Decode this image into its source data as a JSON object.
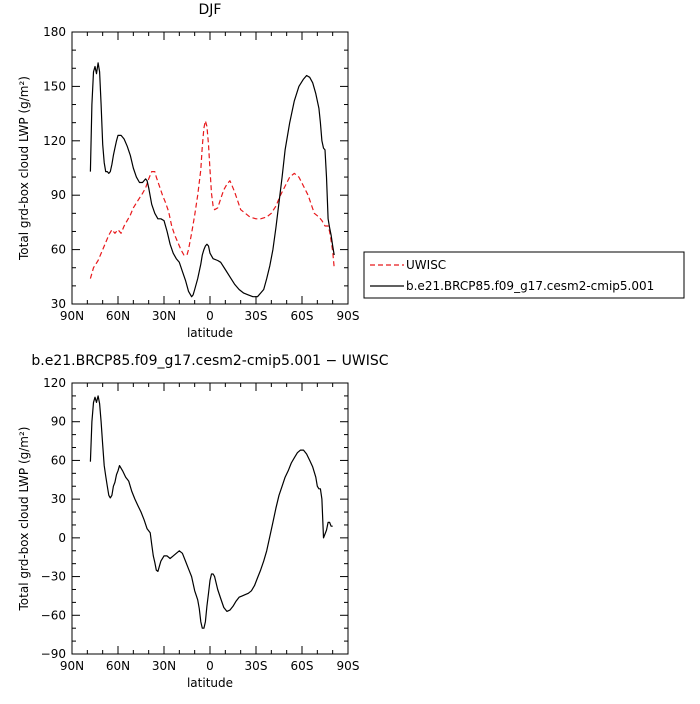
{
  "chart_data": [
    {
      "type": "line",
      "title": "DJF",
      "xlabel": "latitude",
      "ylabel": "Total grd-box cloud LWP (g/m²)",
      "xlim": [
        90,
        -90
      ],
      "ylim": [
        30,
        180
      ],
      "xticks": [
        90,
        60,
        30,
        0,
        -30,
        -60,
        -90
      ],
      "xticklabels": [
        "90N",
        "60N",
        "30N",
        "0",
        "30S",
        "60S",
        "90S"
      ],
      "yticks": [
        30,
        60,
        90,
        120,
        150,
        180
      ],
      "yticklabels": [
        "30",
        "60",
        "90",
        "120",
        "150",
        "180"
      ],
      "legend_position": "right",
      "series": [
        {
          "name": "UWISC",
          "color": "#e8191c",
          "dash": "dashed",
          "points": [
            [
              78,
              44
            ],
            [
              76,
              50
            ],
            [
              73,
              54
            ],
            [
              70,
              60
            ],
            [
              66,
              68
            ],
            [
              64,
              71
            ],
            [
              62,
              69
            ],
            [
              60,
              71
            ],
            [
              58,
              69
            ],
            [
              56,
              73
            ],
            [
              52,
              79
            ],
            [
              50,
              83
            ],
            [
              47,
              87
            ],
            [
              44,
              91
            ],
            [
              42,
              94
            ],
            [
              40,
              99
            ],
            [
              38,
              103
            ],
            [
              36,
              103
            ],
            [
              35,
              100
            ],
            [
              33,
              95
            ],
            [
              31,
              90
            ],
            [
              29,
              86
            ],
            [
              27,
              81
            ],
            [
              25,
              73
            ],
            [
              23,
              68
            ],
            [
              21,
              64
            ],
            [
              19,
              60
            ],
            [
              17,
              57
            ],
            [
              15,
              57
            ],
            [
              14,
              60
            ],
            [
              12,
              69
            ],
            [
              10,
              79
            ],
            [
              8,
              90
            ],
            [
              6,
              104
            ],
            [
              5,
              117
            ],
            [
              4,
              127
            ],
            [
              3,
              131
            ],
            [
              2,
              128
            ],
            [
              1,
              118
            ],
            [
              0,
              104
            ],
            [
              -1,
              91
            ],
            [
              -2,
              84
            ],
            [
              -3,
              82
            ],
            [
              -5,
              83
            ],
            [
              -7,
              88
            ],
            [
              -9,
              93
            ],
            [
              -11,
              96
            ],
            [
              -13,
              98
            ],
            [
              -14,
              96
            ],
            [
              -16,
              92
            ],
            [
              -18,
              87
            ],
            [
              -20,
              82
            ],
            [
              -23,
              80
            ],
            [
              -26,
              78
            ],
            [
              -30,
              77
            ],
            [
              -33,
              77
            ],
            [
              -37,
              78
            ],
            [
              -40,
              80
            ],
            [
              -43,
              84
            ],
            [
              -46,
              90
            ],
            [
              -49,
              95
            ],
            [
              -52,
              100
            ],
            [
              -55,
              102
            ],
            [
              -58,
              100
            ],
            [
              -61,
              95
            ],
            [
              -64,
              90
            ],
            [
              -66,
              85
            ],
            [
              -68,
              80
            ],
            [
              -71,
              78
            ],
            [
              -73,
              76
            ],
            [
              -75,
              73
            ],
            [
              -77,
              73
            ],
            [
              -78,
              70
            ],
            [
              -79,
              65
            ],
            [
              -80,
              59
            ],
            [
              -81,
              50
            ]
          ]
        },
        {
          "name": "b.e21.BRCP85.f09_g17.cesm2-cmip5.001",
          "color": "#000000",
          "dash": "solid",
          "points": [
            [
              78,
              103
            ],
            [
              77,
              140
            ],
            [
              76,
              158
            ],
            [
              75,
              161
            ],
            [
              74,
              157
            ],
            [
              73,
              163
            ],
            [
              72,
              158
            ],
            [
              71,
              140
            ],
            [
              70,
              118
            ],
            [
              69,
              108
            ],
            [
              68,
              103
            ],
            [
              67,
              103
            ],
            [
              66,
              102
            ],
            [
              65,
              103
            ],
            [
              64,
              107
            ],
            [
              63,
              112
            ],
            [
              62,
              116
            ],
            [
              61,
              120
            ],
            [
              60,
              123
            ],
            [
              58,
              123
            ],
            [
              56,
              121
            ],
            [
              54,
              117
            ],
            [
              52,
              112
            ],
            [
              50,
              105
            ],
            [
              48,
              100
            ],
            [
              46,
              97
            ],
            [
              44,
              97
            ],
            [
              42,
              99
            ],
            [
              41,
              98
            ],
            [
              40,
              94
            ],
            [
              38,
              85
            ],
            [
              36,
              80
            ],
            [
              34,
              77
            ],
            [
              32,
              77
            ],
            [
              30,
              76
            ],
            [
              28,
              70
            ],
            [
              26,
              63
            ],
            [
              24,
              58
            ],
            [
              22,
              55
            ],
            [
              20,
              53
            ],
            [
              18,
              48
            ],
            [
              16,
              43
            ],
            [
              14,
              37
            ],
            [
              12,
              34
            ],
            [
              11,
              35
            ],
            [
              10,
              38
            ],
            [
              8,
              44
            ],
            [
              6,
              52
            ],
            [
              5,
              57
            ],
            [
              4,
              60
            ],
            [
              3,
              62
            ],
            [
              2,
              63
            ],
            [
              1,
              62
            ],
            [
              0,
              58
            ],
            [
              -2,
              55
            ],
            [
              -5,
              54
            ],
            [
              -7,
              53
            ],
            [
              -10,
              49
            ],
            [
              -13,
              45
            ],
            [
              -16,
              41
            ],
            [
              -19,
              38
            ],
            [
              -22,
              36
            ],
            [
              -25,
              35
            ],
            [
              -28,
              34
            ],
            [
              -31,
              34
            ],
            [
              -33,
              36
            ],
            [
              -35,
              38
            ],
            [
              -37,
              44
            ],
            [
              -39,
              51
            ],
            [
              -41,
              60
            ],
            [
              -43,
              72
            ],
            [
              -45,
              86
            ],
            [
              -47,
              100
            ],
            [
              -49,
              115
            ],
            [
              -52,
              130
            ],
            [
              -55,
              142
            ],
            [
              -58,
              150
            ],
            [
              -61,
              154
            ],
            [
              -63,
              156
            ],
            [
              -65,
              155
            ],
            [
              -67,
              152
            ],
            [
              -69,
              146
            ],
            [
              -71,
              138
            ],
            [
              -72,
              130
            ],
            [
              -73,
              120
            ],
            [
              -74,
              116
            ],
            [
              -75,
              115
            ],
            [
              -76,
              100
            ],
            [
              -77,
              77
            ],
            [
              -78,
              72
            ],
            [
              -79,
              68
            ],
            [
              -80,
              62
            ],
            [
              -81,
              57
            ]
          ]
        }
      ]
    },
    {
      "type": "line",
      "title": "b.e21.BRCP85.f09_g17.cesm2-cmip5.001 − UWISC",
      "xlabel": "latitude",
      "ylabel": "Total grd-box cloud LWP (g/m²)",
      "xlim": [
        90,
        -90
      ],
      "ylim": [
        -90,
        120
      ],
      "xticks": [
        90,
        60,
        30,
        0,
        -30,
        -60,
        -90
      ],
      "xticklabels": [
        "90N",
        "60N",
        "30N",
        "0",
        "30S",
        "60S",
        "90S"
      ],
      "yticks": [
        -90,
        -60,
        -30,
        0,
        30,
        60,
        90,
        120
      ],
      "yticklabels": [
        "−90",
        "−60",
        "−30",
        "0",
        "30",
        "60",
        "90",
        "120"
      ],
      "series": [
        {
          "color": "#000000",
          "dash": "solid",
          "points": [
            [
              78,
              59
            ],
            [
              77,
              90
            ],
            [
              76,
              105
            ],
            [
              75,
              109
            ],
            [
              74,
              105
            ],
            [
              73,
              110
            ],
            [
              72,
              104
            ],
            [
              71,
              90
            ],
            [
              70,
              72
            ],
            [
              69,
              56
            ],
            [
              68,
              48
            ],
            [
              67,
              40
            ],
            [
              66,
              33
            ],
            [
              65,
              31
            ],
            [
              64,
              33
            ],
            [
              63,
              40
            ],
            [
              62,
              43
            ],
            [
              61,
              49
            ],
            [
              60,
              52
            ],
            [
              59,
              56
            ],
            [
              57,
              52
            ],
            [
              55,
              47
            ],
            [
              53,
              44
            ],
            [
              51,
              36
            ],
            [
              49,
              30
            ],
            [
              47,
              25
            ],
            [
              45,
              20
            ],
            [
              43,
              14
            ],
            [
              41,
              7
            ],
            [
              39,
              4
            ],
            [
              38,
              -5
            ],
            [
              37,
              -14
            ],
            [
              36,
              -19
            ],
            [
              35,
              -25
            ],
            [
              34,
              -26
            ],
            [
              33,
              -22
            ],
            [
              32,
              -18
            ],
            [
              30,
              -14
            ],
            [
              28,
              -14
            ],
            [
              26,
              -16
            ],
            [
              24,
              -14
            ],
            [
              22,
              -12
            ],
            [
              20,
              -10
            ],
            [
              18,
              -12
            ],
            [
              16,
              -18
            ],
            [
              14,
              -24
            ],
            [
              12,
              -30
            ],
            [
              10,
              -41
            ],
            [
              8,
              -48
            ],
            [
              7,
              -55
            ],
            [
              6,
              -65
            ],
            [
              5,
              -70
            ],
            [
              4,
              -70
            ],
            [
              3,
              -65
            ],
            [
              2,
              -53
            ],
            [
              1,
              -43
            ],
            [
              0,
              -33
            ],
            [
              -1,
              -28
            ],
            [
              -2,
              -28
            ],
            [
              -3,
              -30
            ],
            [
              -5,
              -40
            ],
            [
              -7,
              -47
            ],
            [
              -9,
              -54
            ],
            [
              -11,
              -57
            ],
            [
              -13,
              -56
            ],
            [
              -15,
              -53
            ],
            [
              -17,
              -49
            ],
            [
              -19,
              -46
            ],
            [
              -21,
              -45
            ],
            [
              -23,
              -44
            ],
            [
              -25,
              -43
            ],
            [
              -27,
              -41
            ],
            [
              -29,
              -37
            ],
            [
              -31,
              -31
            ],
            [
              -33,
              -25
            ],
            [
              -35,
              -18
            ],
            [
              -37,
              -10
            ],
            [
              -39,
              1
            ],
            [
              -41,
              12
            ],
            [
              -43,
              23
            ],
            [
              -45,
              33
            ],
            [
              -47,
              40
            ],
            [
              -49,
              47
            ],
            [
              -51,
              52
            ],
            [
              -53,
              58
            ],
            [
              -55,
              62
            ],
            [
              -57,
              66
            ],
            [
              -59,
              68
            ],
            [
              -61,
              68
            ],
            [
              -63,
              65
            ],
            [
              -65,
              60
            ],
            [
              -67,
              55
            ],
            [
              -69,
              47
            ],
            [
              -70,
              40
            ],
            [
              -71,
              38
            ],
            [
              -72,
              38
            ],
            [
              -73,
              30
            ],
            [
              -74,
              0
            ],
            [
              -75,
              3
            ],
            [
              -76,
              6
            ],
            [
              -77,
              12
            ],
            [
              -78,
              12
            ],
            [
              -79,
              9
            ],
            [
              -80,
              9
            ]
          ]
        }
      ]
    }
  ]
}
